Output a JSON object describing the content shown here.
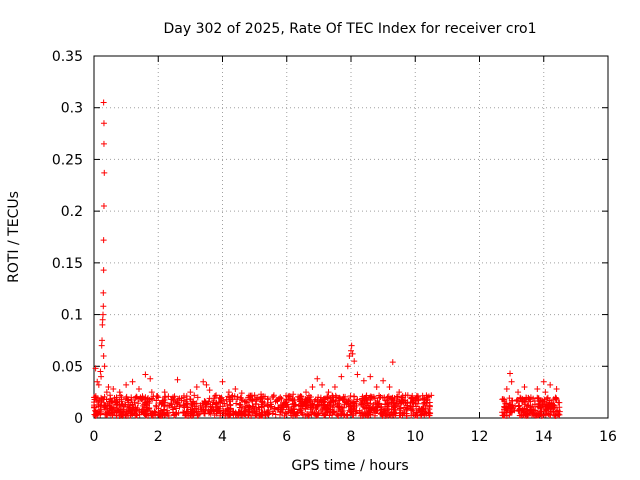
{
  "chart_data": {
    "type": "scatter",
    "title": "Day 302 of 2025, Rate Of TEC Index for receiver cro1",
    "xlabel": "GPS time / hours",
    "ylabel": "ROTI / TECUs",
    "xlim": [
      0,
      16
    ],
    "ylim": [
      0,
      0.35
    ],
    "xticks": [
      0,
      2,
      4,
      6,
      8,
      10,
      12,
      14,
      16
    ],
    "yticks": [
      0,
      0.05,
      0.1,
      0.15,
      0.2,
      0.25,
      0.3,
      0.35
    ],
    "xtick_labels": [
      "0",
      "2",
      "4",
      "6",
      "8",
      "10",
      "12",
      "14",
      "16"
    ],
    "ytick_labels": [
      "0",
      "0.05",
      "0.1",
      "0.15",
      "0.2",
      "0.25",
      "0.3",
      "0.35"
    ],
    "grid": true,
    "marker": "+",
    "color": "#ff0000",
    "series": [
      {
        "name": "ROTI",
        "x": [
          0.3,
          0.31,
          0.31,
          0.32,
          0.31,
          0.3,
          0.3,
          0.29,
          0.29,
          0.28,
          0.27,
          0.26,
          0.25,
          0.24,
          0.2,
          0.3,
          0.33,
          0.22,
          0.45,
          0.1,
          0.05,
          0.15,
          0.4,
          0.5,
          0.6,
          0.7,
          0.8,
          1.0,
          1.2,
          1.4,
          1.6,
          1.75,
          1.8,
          2.0,
          2.2,
          2.4,
          2.6,
          2.8,
          3.0,
          3.2,
          3.4,
          3.5,
          3.6,
          3.8,
          4.0,
          4.2,
          4.4,
          4.6,
          4.8,
          5.0,
          5.2,
          5.4,
          5.6,
          5.8,
          6.0,
          6.2,
          6.4,
          6.6,
          6.8,
          6.95,
          7.1,
          7.3,
          7.5,
          7.7,
          7.9,
          7.95,
          8.0,
          8.02,
          8.05,
          8.1,
          8.2,
          8.4,
          8.6,
          8.8,
          9.0,
          9.2,
          9.3,
          9.5,
          9.7,
          9.9,
          10.1,
          10.3,
          10.45,
          12.85,
          12.95,
          13.0,
          13.2,
          13.4,
          13.6,
          13.8,
          14.0,
          14.05,
          14.2,
          14.4
        ],
        "y": [
          0.305,
          0.285,
          0.265,
          0.237,
          0.205,
          0.172,
          0.143,
          0.121,
          0.108,
          0.1,
          0.095,
          0.09,
          0.075,
          0.07,
          0.045,
          0.06,
          0.05,
          0.04,
          0.03,
          0.035,
          0.048,
          0.032,
          0.025,
          0.022,
          0.028,
          0.02,
          0.025,
          0.032,
          0.035,
          0.028,
          0.042,
          0.038,
          0.025,
          0.02,
          0.025,
          0.018,
          0.037,
          0.02,
          0.025,
          0.03,
          0.035,
          0.032,
          0.027,
          0.022,
          0.035,
          0.025,
          0.028,
          0.024,
          0.02,
          0.022,
          0.023,
          0.018,
          0.022,
          0.02,
          0.018,
          0.023,
          0.02,
          0.025,
          0.03,
          0.038,
          0.032,
          0.025,
          0.03,
          0.04,
          0.05,
          0.06,
          0.065,
          0.07,
          0.062,
          0.055,
          0.042,
          0.036,
          0.04,
          0.03,
          0.036,
          0.03,
          0.054,
          0.025,
          0.022,
          0.02,
          0.018,
          0.015,
          0.012,
          0.028,
          0.043,
          0.035,
          0.025,
          0.03,
          0.02,
          0.028,
          0.035,
          0.025,
          0.032,
          0.028
        ]
      }
    ],
    "dense_bands": [
      {
        "x_range": [
          0.0,
          10.5
        ],
        "y_range": [
          0.002,
          0.022
        ]
      },
      {
        "x_range": [
          12.7,
          14.5
        ],
        "y_range": [
          0.002,
          0.02
        ]
      }
    ]
  }
}
